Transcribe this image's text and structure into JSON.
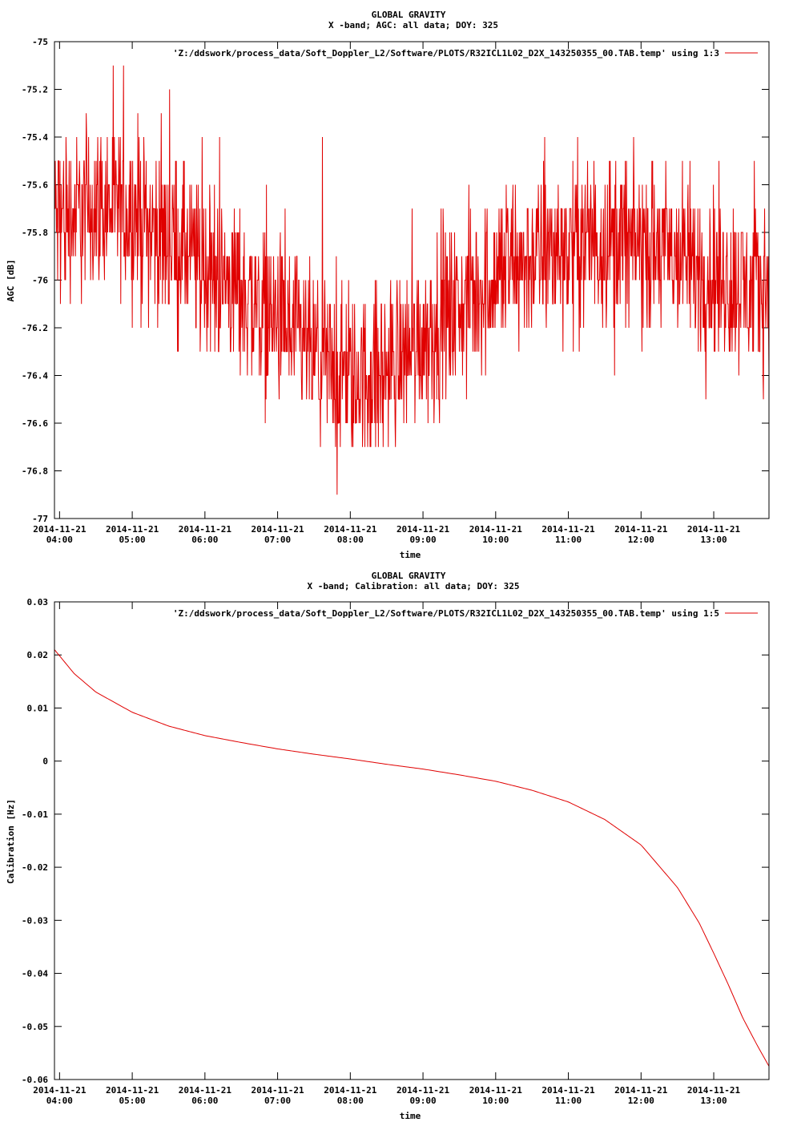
{
  "chart_data": [
    {
      "type": "line",
      "title": "GLOBAL GRAVITY",
      "subtitle": "X -band; AGC: all data; DOY: 325",
      "xlabel": "time",
      "ylabel": "AGC [dB]",
      "ylim": [
        -77,
        -75
      ],
      "xlim": [
        3.93,
        13.76
      ],
      "grid": false,
      "legend_position": "top-right",
      "legend": "'Z:/ddswork/process_data/Soft_Doppler_L2/Software/PLOTS/R32ICL1L02_D2X_143250355_00.TAB.temp' using 1:3",
      "yticks": [
        -75,
        -75.2,
        -75.4,
        -75.6,
        -75.8,
        -76,
        -76.2,
        -76.4,
        -76.6,
        -76.8,
        -77
      ],
      "ytick_labels": [
        "-75",
        "-75.2",
        "-75.4",
        "-75.6",
        "-75.8",
        "-76",
        "-76.2",
        "-76.4",
        "-76.6",
        "-76.8",
        "-77"
      ],
      "xticks": [
        4,
        5,
        6,
        7,
        8,
        9,
        10,
        11,
        12,
        13
      ],
      "xtick_dates": [
        "2014-11-21",
        "2014-11-21",
        "2014-11-21",
        "2014-11-21",
        "2014-11-21",
        "2014-11-21",
        "2014-11-21",
        "2014-11-21",
        "2014-11-21",
        "2014-11-21"
      ],
      "xtick_times": [
        "04:00",
        "05:00",
        "06:00",
        "07:00",
        "08:00",
        "09:00",
        "10:00",
        "11:00",
        "12:00",
        "13:00"
      ],
      "color": "#e00000",
      "series": [
        {
          "name": "'Z:/ddswork/process_data/Soft_Doppler_L2/Software/PLOTS/R32ICL1L02_D2X_143250355_00.TAB.temp' using 1:3",
          "trend": {
            "x": [
              3.93,
              4.5,
              5.0,
              5.5,
              6.0,
              6.5,
              7.0,
              7.5,
              8.0,
              8.5,
              9.0,
              9.5,
              10.0,
              10.5,
              11.0,
              11.5,
              12.0,
              12.5,
              13.0,
              13.5,
              13.76
            ],
            "y": [
              -75.75,
              -75.68,
              -75.72,
              -75.82,
              -75.95,
              -76.05,
              -76.18,
              -76.32,
              -76.42,
              -76.38,
              -76.22,
              -76.12,
              -75.98,
              -75.9,
              -75.85,
              -75.82,
              -75.85,
              -75.9,
              -75.98,
              -76.05,
              -76.0
            ]
          },
          "noise_amplitude": 0.25,
          "step": 0.1
        }
      ]
    },
    {
      "type": "line",
      "title": "GLOBAL GRAVITY",
      "subtitle": "X -band; Calibration: all data; DOY: 325",
      "xlabel": "time",
      "ylabel": "Calibration [Hz]",
      "ylim": [
        -0.06,
        0.03
      ],
      "xlim": [
        3.93,
        13.76
      ],
      "grid": false,
      "legend_position": "top-right",
      "legend": "'Z:/ddswork/process_data/Soft_Doppler_L2/Software/PLOTS/R32ICL1L02_D2X_143250355_00.TAB.temp' using 1:5",
      "yticks": [
        0.03,
        0.02,
        0.01,
        0,
        -0.01,
        -0.02,
        -0.03,
        -0.04,
        -0.05,
        -0.06
      ],
      "ytick_labels": [
        "0.03",
        "0.02",
        "0.01",
        "0",
        "-0.01",
        "-0.02",
        "-0.03",
        "-0.04",
        "-0.05",
        "-0.06"
      ],
      "xticks": [
        4,
        5,
        6,
        7,
        8,
        9,
        10,
        11,
        12,
        13
      ],
      "xtick_dates": [
        "2014-11-21",
        "2014-11-21",
        "2014-11-21",
        "2014-11-21",
        "2014-11-21",
        "2014-11-21",
        "2014-11-21",
        "2014-11-21",
        "2014-11-21",
        "2014-11-21"
      ],
      "xtick_times": [
        "04:00",
        "05:00",
        "06:00",
        "07:00",
        "08:00",
        "09:00",
        "10:00",
        "11:00",
        "12:00",
        "13:00"
      ],
      "color": "#e00000",
      "series": [
        {
          "name": "'Z:/ddswork/process_data/Soft_Doppler_L2/Software/PLOTS/R32ICL1L02_D2X_143250355_00.TAB.temp' using 1:5",
          "x": [
            3.93,
            4.2,
            4.5,
            5.0,
            5.5,
            6.0,
            6.5,
            7.0,
            7.5,
            8.0,
            8.5,
            9.0,
            9.5,
            10.0,
            10.5,
            11.0,
            11.5,
            12.0,
            12.5,
            12.8,
            13.0,
            13.2,
            13.4,
            13.6,
            13.76
          ],
          "y": [
            0.021,
            0.0165,
            0.013,
            0.0092,
            0.0066,
            0.0048,
            0.0035,
            0.0023,
            0.0013,
            0.0004,
            -0.0006,
            -0.0015,
            -0.0026,
            -0.0038,
            -0.0055,
            -0.0077,
            -0.011,
            -0.0158,
            -0.0238,
            -0.0305,
            -0.0362,
            -0.0421,
            -0.0484,
            -0.0536,
            -0.0575
          ]
        }
      ]
    }
  ]
}
